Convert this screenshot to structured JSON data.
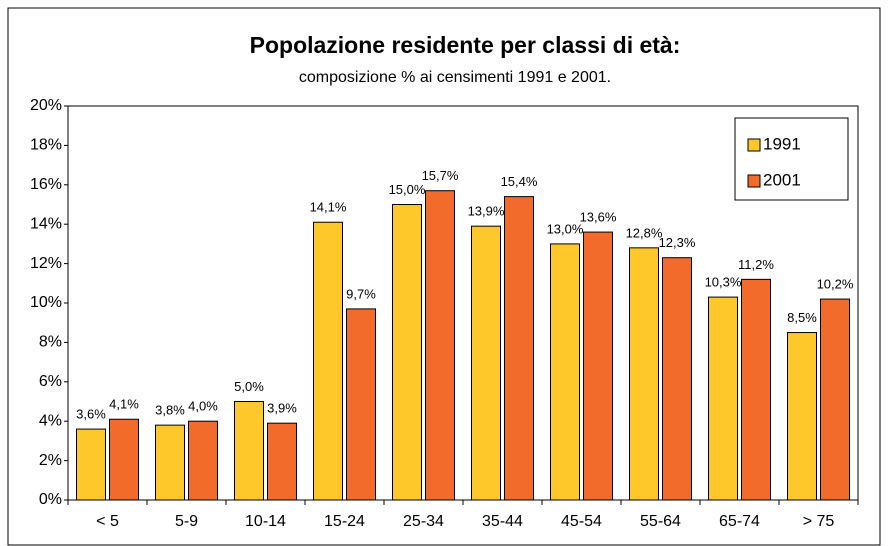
{
  "chart_data": {
    "type": "bar",
    "title": "Popolazione residente per classi di età:",
    "subtitle": "composizione % ai censimenti 1991 e 2001.",
    "categories": [
      "< 5",
      "5-9",
      "10-14",
      "15-24",
      "25-34",
      "35-44",
      "45-54",
      "55-64",
      "65-74",
      "> 75"
    ],
    "series": [
      {
        "name": "1991",
        "color": "#ffc82a",
        "values": [
          3.6,
          3.8,
          5.0,
          14.1,
          15.0,
          13.9,
          13.0,
          12.8,
          10.3,
          8.5
        ],
        "value_labels": [
          "3,6%",
          "3,8%",
          "5,0%",
          "14,1%",
          "15,0%",
          "13,9%",
          "13,0%",
          "12,8%",
          "10,3%",
          "8,5%"
        ]
      },
      {
        "name": "2001",
        "color": "#f26b2a",
        "values": [
          4.1,
          4.0,
          3.9,
          9.7,
          15.7,
          15.4,
          13.6,
          12.3,
          11.2,
          10.2
        ],
        "value_labels": [
          "4,1%",
          "4,0%",
          "3,9%",
          "9,7%",
          "15,7%",
          "15,4%",
          "13,6%",
          "12,3%",
          "11,2%",
          "10,2%"
        ]
      }
    ],
    "ylim": [
      0,
      20
    ],
    "yticks": [
      {
        "value": 0,
        "label": "0%"
      },
      {
        "value": 2,
        "label": "2%"
      },
      {
        "value": 4,
        "label": "4%"
      },
      {
        "value": 6,
        "label": "6%"
      },
      {
        "value": 8,
        "label": "8%"
      },
      {
        "value": 10,
        "label": "10%"
      },
      {
        "value": 12,
        "label": "12%"
      },
      {
        "value": 14,
        "label": "14%"
      },
      {
        "value": 16,
        "label": "16%"
      },
      {
        "value": 18,
        "label": "18%"
      },
      {
        "value": 20,
        "label": "20%"
      }
    ],
    "grid": false,
    "legend": "upper right"
  }
}
